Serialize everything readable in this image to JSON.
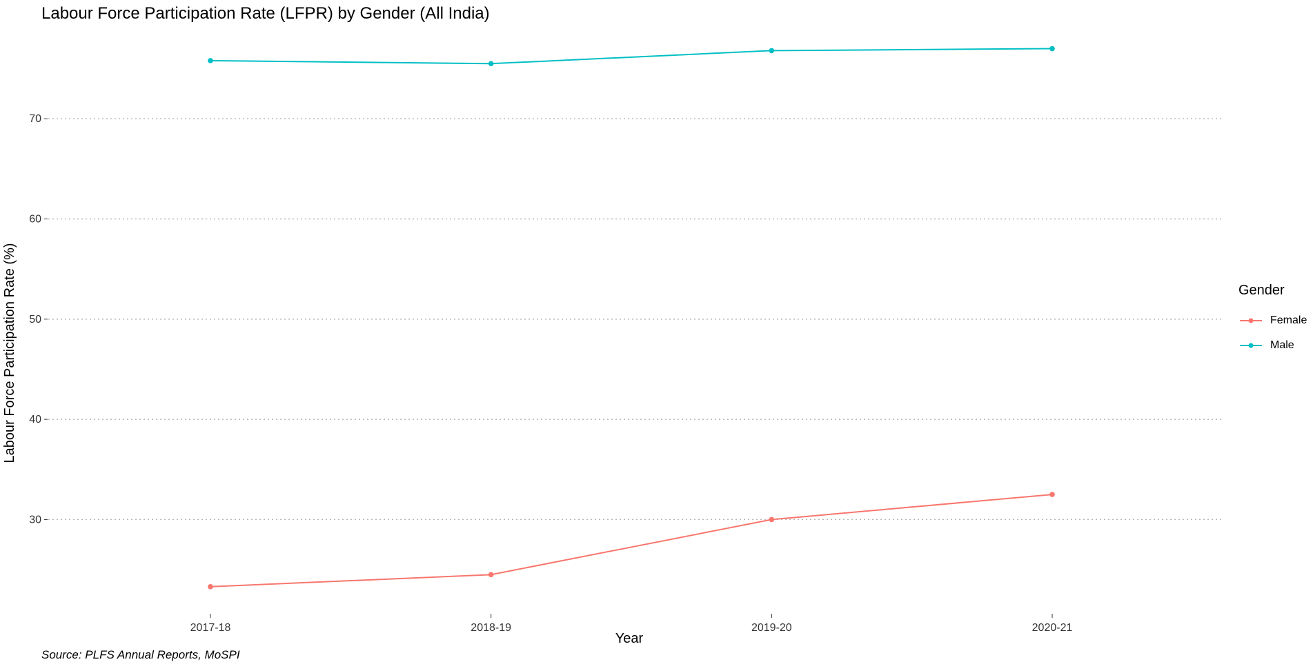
{
  "chart_data": {
    "type": "line",
    "title": "Labour Force Participation Rate (LFPR) by Gender (All India)",
    "caption": "Source: PLFS Annual Reports, MoSPI",
    "xlabel": "Year",
    "ylabel": "Labour Force Participation Rate (%)",
    "categories": [
      "2017-18",
      "2018-19",
      "2019-20",
      "2020-21"
    ],
    "y_ticks": [
      30,
      40,
      50,
      60,
      70
    ],
    "ylim": [
      20.6,
      79.1
    ],
    "grid": "horizontal dotted major gridlines",
    "legend_title": "Gender",
    "legend_position": "right",
    "series": [
      {
        "name": "Female",
        "color": "#F8766D",
        "values": [
          23.3,
          24.5,
          30.0,
          32.5
        ]
      },
      {
        "name": "Male",
        "color": "#00BFC4",
        "values": [
          75.8,
          75.5,
          76.8,
          77.0
        ]
      }
    ]
  }
}
